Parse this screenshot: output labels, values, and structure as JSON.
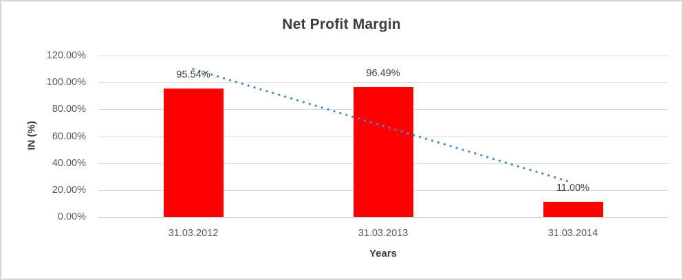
{
  "chart_data": {
    "type": "bar",
    "title": "Net Profit Margin",
    "xlabel": "Years",
    "ylabel": "IN (%)",
    "categories": [
      "31.03.2012",
      "31.03.2013",
      "31.03.2014"
    ],
    "values": [
      95.54,
      96.49,
      11.0
    ],
    "data_labels": [
      "95.54%",
      "96.49%",
      "11.00%"
    ],
    "ytick_labels": [
      "120.00%",
      "100.00%",
      "80.00%",
      "60.00%",
      "40.00%",
      "20.00%",
      "0.00%"
    ],
    "ylim": [
      0,
      120
    ],
    "grid": true,
    "legend": "none",
    "bar_color": "#ff0000",
    "trendline": {
      "kind": "linear",
      "style": "dotted",
      "color": "#4a86c8"
    },
    "colors": {
      "gridline": "#d9d9d9",
      "axis_line": "#bfbfbf",
      "tick_text": "#595959",
      "title_text": "#3d3d3d",
      "frame_border": "#d4d4d4",
      "background": "#ffffff"
    }
  }
}
